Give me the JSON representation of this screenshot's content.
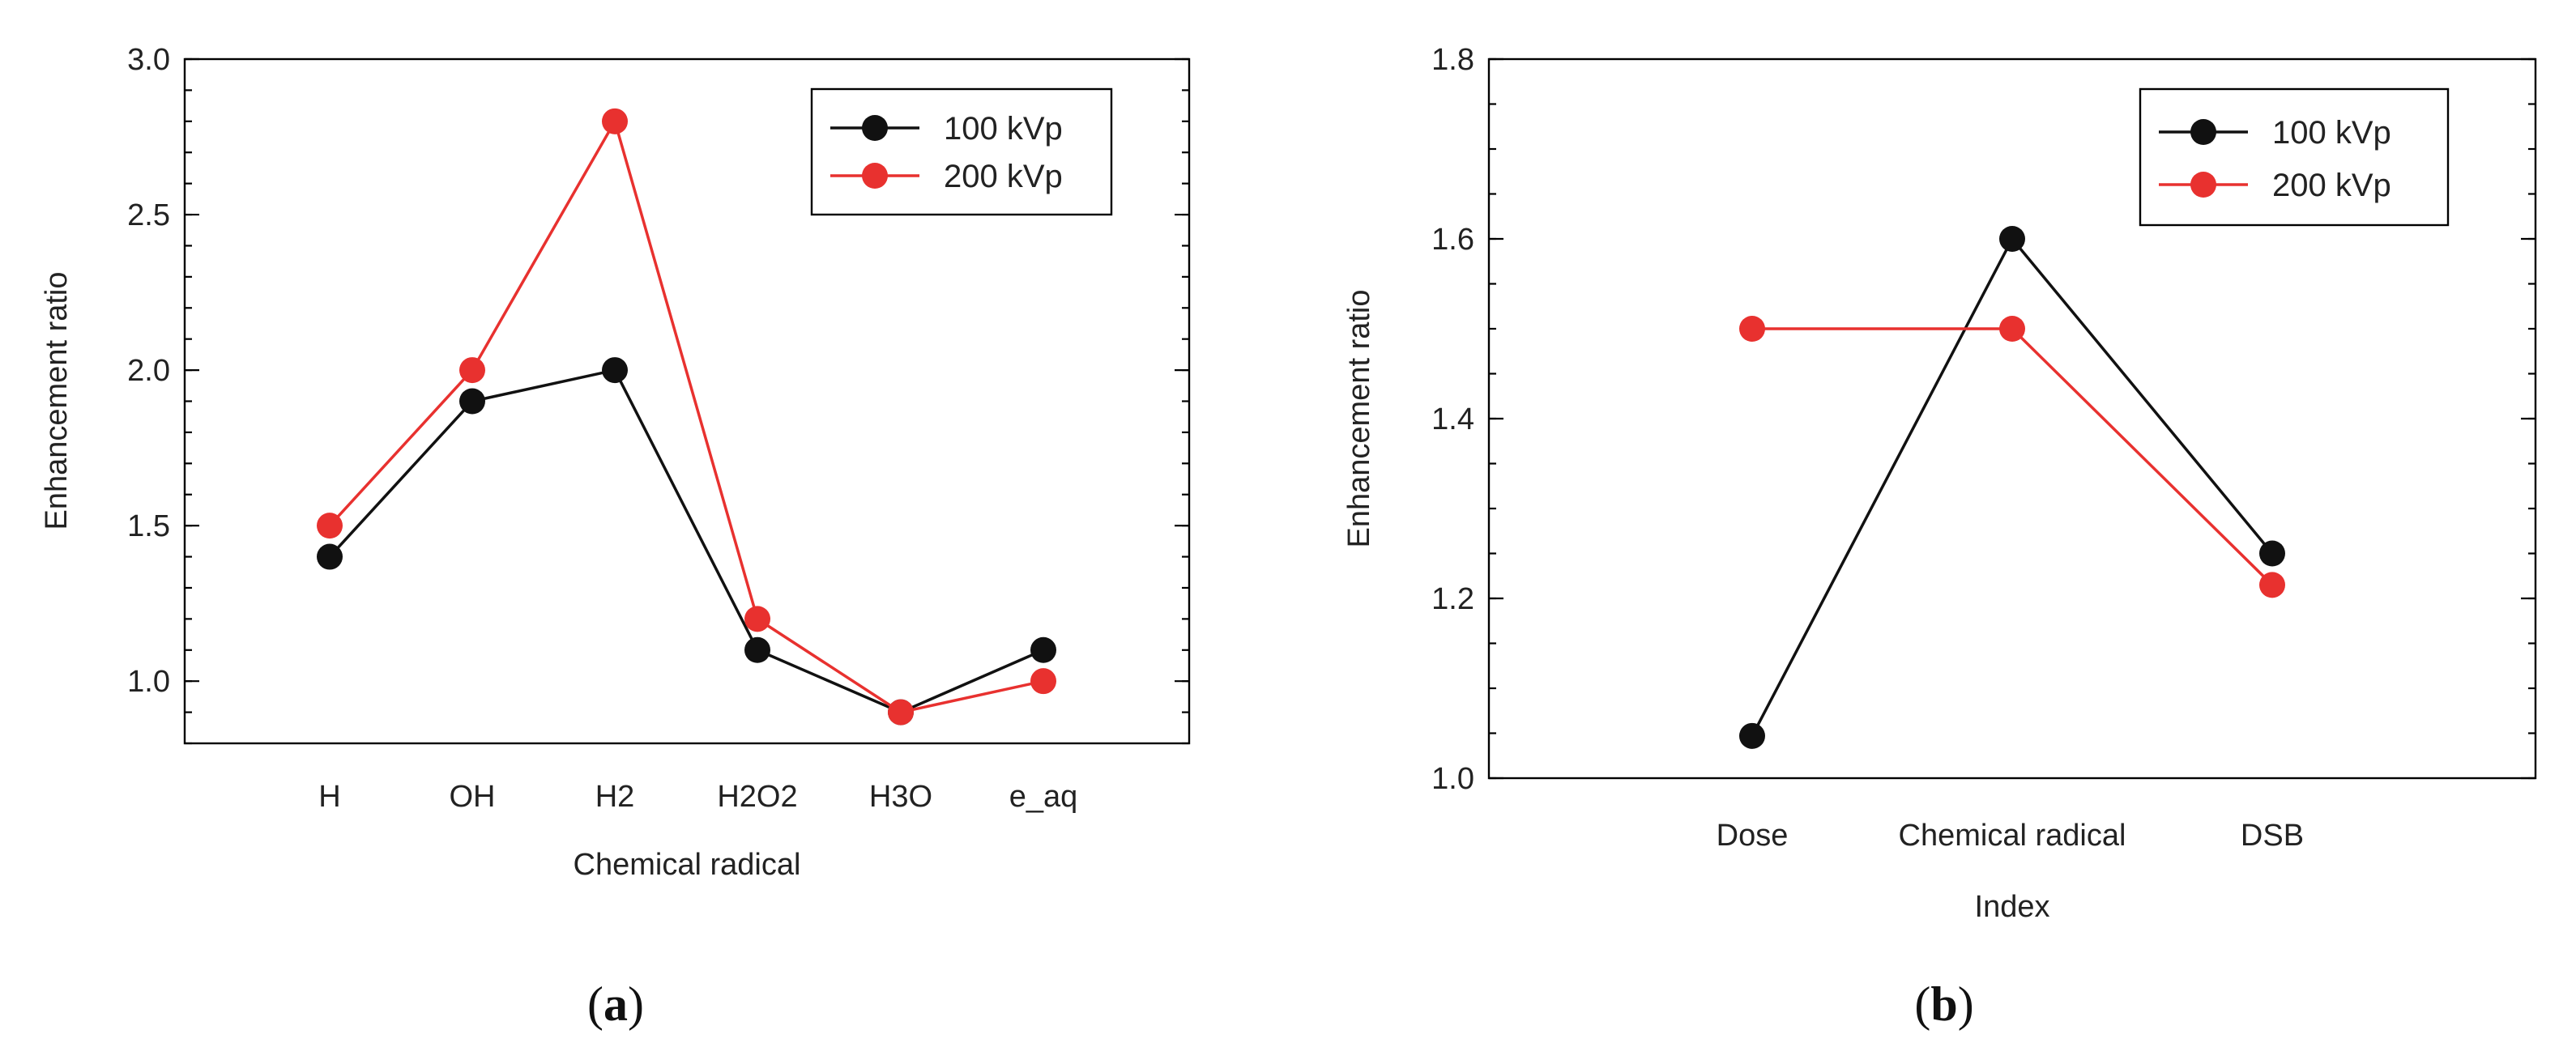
{
  "chart_data": [
    {
      "type": "line",
      "panel_label": "a",
      "xlabel": "Chemical radical",
      "ylabel": "Enhancement ratio",
      "categories": [
        "H",
        "OH",
        "H2",
        "H2O2",
        "H3O",
        "e_aq"
      ],
      "ylim": [
        0.8,
        3.0
      ],
      "yticks": [
        1.0,
        1.5,
        2.0,
        2.5,
        3.0
      ],
      "ytick_labels": [
        "1.0",
        "1.5",
        "2.0",
        "2.5",
        "3.0"
      ],
      "series": [
        {
          "name": "100 kVp",
          "color": "#111111",
          "values": [
            1.4,
            1.9,
            2.0,
            1.1,
            0.9,
            1.1
          ]
        },
        {
          "name": "200 kVp",
          "color": "#e8312f",
          "values": [
            1.5,
            2.0,
            2.8,
            1.2,
            0.9,
            1.0
          ]
        }
      ],
      "legend": "top-right",
      "grid": false
    },
    {
      "type": "line",
      "panel_label": "b",
      "xlabel": "Index",
      "ylabel": "Enhancement ratio",
      "categories": [
        "Dose",
        "Chemical radical",
        "DSB"
      ],
      "ylim": [
        1.0,
        1.8
      ],
      "yticks": [
        1.0,
        1.2,
        1.4,
        1.6,
        1.8
      ],
      "ytick_labels": [
        "1.0",
        "1.2",
        "1.4",
        "1.6",
        "1.8"
      ],
      "series": [
        {
          "name": "100 kVp",
          "color": "#111111",
          "values": [
            1.047,
            1.6,
            1.25
          ]
        },
        {
          "name": "200 kVp",
          "color": "#e8312f",
          "values": [
            1.5,
            1.5,
            1.215
          ]
        }
      ],
      "legend": "top-right",
      "grid": false
    }
  ]
}
